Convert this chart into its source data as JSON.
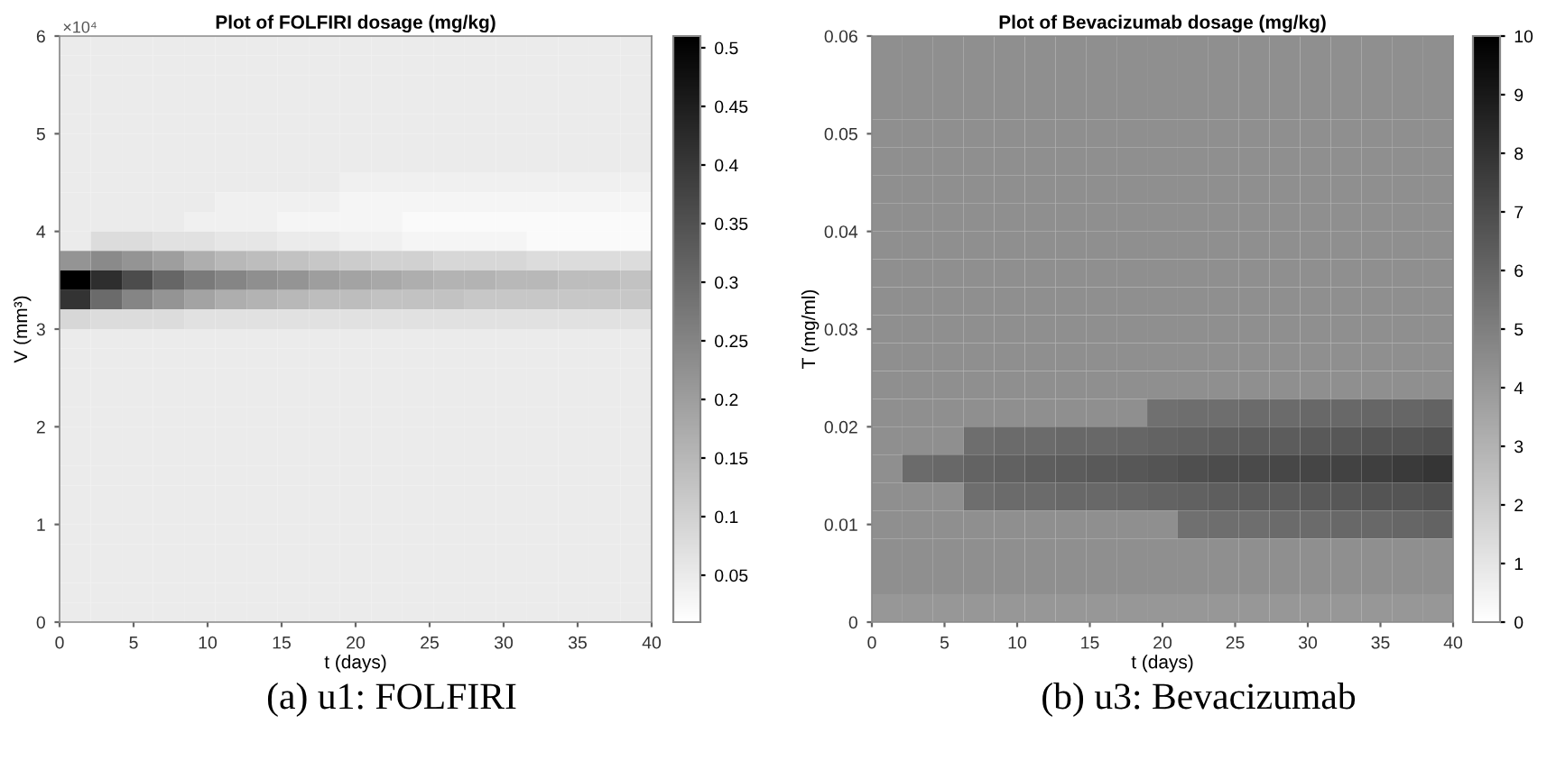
{
  "chart_data": [
    {
      "type": "heatmap",
      "title": "Plot of FOLFIRI dosage (mg/kg)",
      "xlabel": "t (days)",
      "ylabel": "V (mm³)",
      "xlim": [
        0,
        40
      ],
      "ylim": [
        0,
        6
      ],
      "xticks": [
        0,
        5,
        10,
        15,
        20,
        25,
        30,
        35,
        40
      ],
      "yticks": [
        0,
        1,
        2,
        3,
        4,
        5,
        6
      ],
      "clim": [
        0.01,
        0.51
      ],
      "cticks": [
        0.05,
        0.1,
        0.15,
        0.2,
        0.25,
        0.3,
        0.35,
        0.4,
        0.45,
        0.5
      ],
      "annotations": [
        "×10⁴",
        "(a) u1: FOLFIRI"
      ],
      "cells": [
        [
          0.05,
          0.05,
          0.05,
          0.05,
          0.05,
          0.05,
          0.05,
          0.05,
          0.05,
          0.05,
          0.05,
          0.05,
          0.05,
          0.05,
          0.05,
          0.05,
          0.05,
          0.05,
          0.05
        ],
        [
          0.05,
          0.05,
          0.05,
          0.05,
          0.05,
          0.05,
          0.05,
          0.05,
          0.05,
          0.05,
          0.05,
          0.05,
          0.05,
          0.05,
          0.05,
          0.05,
          0.05,
          0.05,
          0.05
        ],
        [
          0.05,
          0.05,
          0.05,
          0.05,
          0.05,
          0.05,
          0.05,
          0.05,
          0.05,
          0.05,
          0.05,
          0.05,
          0.05,
          0.05,
          0.05,
          0.05,
          0.05,
          0.05,
          0.05
        ],
        [
          0.05,
          0.05,
          0.05,
          0.05,
          0.05,
          0.05,
          0.05,
          0.05,
          0.05,
          0.05,
          0.05,
          0.05,
          0.05,
          0.05,
          0.05,
          0.05,
          0.05,
          0.05,
          0.05
        ],
        [
          0.05,
          0.05,
          0.05,
          0.05,
          0.05,
          0.05,
          0.05,
          0.05,
          0.05,
          0.05,
          0.05,
          0.05,
          0.05,
          0.05,
          0.05,
          0.05,
          0.05,
          0.05,
          0.05
        ],
        [
          0.05,
          0.05,
          0.05,
          0.05,
          0.05,
          0.05,
          0.05,
          0.05,
          0.05,
          0.05,
          0.05,
          0.05,
          0.05,
          0.05,
          0.05,
          0.05,
          0.05,
          0.05,
          0.05
        ],
        [
          0.05,
          0.05,
          0.05,
          0.05,
          0.05,
          0.05,
          0.05,
          0.05,
          0.05,
          0.05,
          0.05,
          0.05,
          0.05,
          0.05,
          0.05,
          0.05,
          0.05,
          0.05,
          0.05
        ],
        [
          0.05,
          0.05,
          0.05,
          0.05,
          0.05,
          0.05,
          0.05,
          0.05,
          0.05,
          0.04,
          0.04,
          0.04,
          0.04,
          0.04,
          0.04,
          0.04,
          0.04,
          0.04,
          0.04
        ],
        [
          0.05,
          0.05,
          0.05,
          0.05,
          0.05,
          0.04,
          0.04,
          0.04,
          0.04,
          0.03,
          0.03,
          0.03,
          0.03,
          0.03,
          0.03,
          0.03,
          0.03,
          0.03,
          0.03
        ],
        [
          0.05,
          0.05,
          0.05,
          0.05,
          0.04,
          0.04,
          0.04,
          0.03,
          0.03,
          0.03,
          0.03,
          0.02,
          0.02,
          0.02,
          0.02,
          0.02,
          0.02,
          0.02,
          0.02
        ],
        [
          0.05,
          0.08,
          0.08,
          0.07,
          0.07,
          0.06,
          0.06,
          0.05,
          0.05,
          0.04,
          0.04,
          0.03,
          0.03,
          0.03,
          0.03,
          0.02,
          0.02,
          0.02,
          0.02
        ],
        [
          0.22,
          0.24,
          0.22,
          0.2,
          0.17,
          0.15,
          0.14,
          0.13,
          0.12,
          0.11,
          0.1,
          0.1,
          0.09,
          0.09,
          0.09,
          0.08,
          0.08,
          0.08,
          0.08
        ],
        [
          0.51,
          0.42,
          0.36,
          0.31,
          0.27,
          0.25,
          0.23,
          0.22,
          0.2,
          0.19,
          0.18,
          0.17,
          0.16,
          0.16,
          0.15,
          0.15,
          0.14,
          0.14,
          0.13
        ],
        [
          0.41,
          0.3,
          0.25,
          0.22,
          0.19,
          0.17,
          0.16,
          0.15,
          0.14,
          0.14,
          0.13,
          0.13,
          0.13,
          0.12,
          0.12,
          0.12,
          0.12,
          0.12,
          0.12
        ],
        [
          0.09,
          0.08,
          0.08,
          0.08,
          0.07,
          0.07,
          0.07,
          0.07,
          0.07,
          0.07,
          0.07,
          0.07,
          0.07,
          0.07,
          0.07,
          0.07,
          0.07,
          0.07,
          0.07
        ],
        [
          0.05,
          0.05,
          0.05,
          0.05,
          0.05,
          0.05,
          0.05,
          0.05,
          0.05,
          0.05,
          0.05,
          0.05,
          0.05,
          0.05,
          0.05,
          0.05,
          0.05,
          0.05,
          0.05
        ],
        [
          0.05,
          0.05,
          0.05,
          0.05,
          0.05,
          0.05,
          0.05,
          0.05,
          0.05,
          0.05,
          0.05,
          0.05,
          0.05,
          0.05,
          0.05,
          0.05,
          0.05,
          0.05,
          0.05
        ],
        [
          0.05,
          0.05,
          0.05,
          0.05,
          0.05,
          0.05,
          0.05,
          0.05,
          0.05,
          0.05,
          0.05,
          0.05,
          0.05,
          0.05,
          0.05,
          0.05,
          0.05,
          0.05,
          0.05
        ],
        [
          0.05,
          0.05,
          0.05,
          0.05,
          0.05,
          0.05,
          0.05,
          0.05,
          0.05,
          0.05,
          0.05,
          0.05,
          0.05,
          0.05,
          0.05,
          0.05,
          0.05,
          0.05,
          0.05
        ],
        [
          0.05,
          0.05,
          0.05,
          0.05,
          0.05,
          0.05,
          0.05,
          0.05,
          0.05,
          0.05,
          0.05,
          0.05,
          0.05,
          0.05,
          0.05,
          0.05,
          0.05,
          0.05,
          0.05
        ],
        [
          0.05,
          0.05,
          0.05,
          0.05,
          0.05,
          0.05,
          0.05,
          0.05,
          0.05,
          0.05,
          0.05,
          0.05,
          0.05,
          0.05,
          0.05,
          0.05,
          0.05,
          0.05,
          0.05
        ],
        [
          0.05,
          0.05,
          0.05,
          0.05,
          0.05,
          0.05,
          0.05,
          0.05,
          0.05,
          0.05,
          0.05,
          0.05,
          0.05,
          0.05,
          0.05,
          0.05,
          0.05,
          0.05,
          0.05
        ],
        [
          0.05,
          0.05,
          0.05,
          0.05,
          0.05,
          0.05,
          0.05,
          0.05,
          0.05,
          0.05,
          0.05,
          0.05,
          0.05,
          0.05,
          0.05,
          0.05,
          0.05,
          0.05,
          0.05
        ],
        [
          0.05,
          0.05,
          0.05,
          0.05,
          0.05,
          0.05,
          0.05,
          0.05,
          0.05,
          0.05,
          0.05,
          0.05,
          0.05,
          0.05,
          0.05,
          0.05,
          0.05,
          0.05,
          0.05
        ],
        [
          0.05,
          0.05,
          0.05,
          0.05,
          0.05,
          0.05,
          0.05,
          0.05,
          0.05,
          0.05,
          0.05,
          0.05,
          0.05,
          0.05,
          0.05,
          0.05,
          0.05,
          0.05,
          0.05
        ],
        [
          0.05,
          0.05,
          0.05,
          0.05,
          0.05,
          0.05,
          0.05,
          0.05,
          0.05,
          0.05,
          0.05,
          0.05,
          0.05,
          0.05,
          0.05,
          0.05,
          0.05,
          0.05,
          0.05
        ],
        [
          0.05,
          0.05,
          0.05,
          0.05,
          0.05,
          0.05,
          0.05,
          0.05,
          0.05,
          0.05,
          0.05,
          0.05,
          0.05,
          0.05,
          0.05,
          0.05,
          0.05,
          0.05,
          0.05
        ],
        [
          0.05,
          0.05,
          0.05,
          0.05,
          0.05,
          0.05,
          0.05,
          0.05,
          0.05,
          0.05,
          0.05,
          0.05,
          0.05,
          0.05,
          0.05,
          0.05,
          0.05,
          0.05,
          0.05
        ],
        [
          0.05,
          0.05,
          0.05,
          0.05,
          0.05,
          0.05,
          0.05,
          0.05,
          0.05,
          0.05,
          0.05,
          0.05,
          0.05,
          0.05,
          0.05,
          0.05,
          0.05,
          0.05,
          0.05
        ],
        [
          0.05,
          0.05,
          0.05,
          0.05,
          0.05,
          0.05,
          0.05,
          0.05,
          0.05,
          0.05,
          0.05,
          0.05,
          0.05,
          0.05,
          0.05,
          0.05,
          0.05,
          0.05,
          0.05
        ]
      ]
    },
    {
      "type": "heatmap",
      "title": "Plot of Bevacizumab dosage (mg/kg)",
      "xlabel": "t (days)",
      "ylabel": "T (mg/ml)",
      "xlim": [
        0,
        40
      ],
      "ylim": [
        0,
        0.06
      ],
      "xticks": [
        0,
        5,
        10,
        15,
        20,
        25,
        30,
        35,
        40
      ],
      "yticks": [
        0,
        0.01,
        0.02,
        0.03,
        0.04,
        0.05,
        0.06
      ],
      "clim": [
        0,
        10
      ],
      "cticks": [
        0,
        1,
        2,
        3,
        4,
        5,
        6,
        7,
        8,
        9,
        10
      ],
      "annotations": [
        "(b) u3: Bevacizumab"
      ],
      "cells": [
        [
          4.4,
          4.4,
          4.4,
          4.4,
          4.4,
          4.4,
          4.4,
          4.4,
          4.4,
          4.4,
          4.4,
          4.4,
          4.4,
          4.4,
          4.4,
          4.4,
          4.4,
          4.4,
          4.4
        ],
        [
          4.4,
          4.4,
          4.4,
          4.4,
          4.4,
          4.4,
          4.4,
          4.4,
          4.4,
          4.4,
          4.4,
          4.4,
          4.4,
          4.4,
          4.4,
          4.4,
          4.4,
          4.4,
          4.4
        ],
        [
          4.4,
          4.4,
          4.4,
          4.4,
          4.4,
          4.4,
          4.4,
          4.4,
          4.4,
          4.4,
          4.4,
          4.4,
          4.4,
          4.4,
          4.4,
          4.4,
          4.4,
          4.4,
          4.4
        ],
        [
          4.4,
          4.4,
          4.4,
          4.4,
          4.4,
          4.4,
          4.4,
          4.4,
          4.4,
          4.4,
          4.4,
          4.4,
          4.4,
          4.4,
          4.4,
          4.4,
          4.4,
          4.4,
          4.4
        ],
        [
          4.4,
          4.4,
          4.4,
          4.4,
          4.4,
          4.4,
          4.4,
          4.4,
          4.4,
          4.4,
          4.4,
          4.4,
          4.4,
          4.4,
          4.4,
          4.4,
          4.4,
          4.4,
          4.4
        ],
        [
          4.4,
          4.4,
          4.4,
          4.4,
          4.4,
          4.4,
          4.4,
          4.4,
          4.4,
          4.4,
          4.4,
          4.4,
          4.4,
          4.4,
          4.4,
          4.4,
          4.4,
          4.4,
          4.4
        ],
        [
          4.4,
          4.4,
          4.4,
          4.4,
          4.4,
          4.4,
          4.4,
          4.4,
          4.4,
          4.4,
          4.4,
          4.4,
          4.4,
          4.4,
          4.4,
          4.4,
          4.4,
          4.4,
          4.4
        ],
        [
          4.4,
          4.4,
          4.4,
          4.4,
          4.4,
          4.4,
          4.4,
          4.4,
          4.4,
          4.4,
          4.4,
          4.4,
          4.4,
          4.4,
          4.4,
          4.4,
          4.4,
          4.4,
          4.4
        ],
        [
          4.4,
          4.4,
          4.4,
          4.4,
          4.4,
          4.4,
          4.4,
          4.4,
          4.4,
          4.4,
          4.4,
          4.4,
          4.4,
          4.4,
          4.4,
          4.4,
          4.4,
          4.4,
          4.4
        ],
        [
          4.4,
          4.4,
          4.4,
          4.4,
          4.4,
          4.4,
          4.4,
          4.4,
          4.4,
          4.4,
          4.4,
          4.4,
          4.4,
          4.4,
          4.4,
          4.4,
          4.4,
          4.4,
          4.4
        ],
        [
          4.4,
          4.4,
          4.4,
          4.4,
          4.4,
          4.4,
          4.4,
          4.4,
          4.4,
          4.4,
          4.4,
          4.4,
          4.4,
          4.4,
          4.4,
          4.4,
          4.4,
          4.4,
          4.4
        ],
        [
          4.4,
          4.4,
          4.4,
          4.4,
          4.4,
          4.4,
          4.4,
          4.4,
          4.4,
          4.4,
          4.4,
          4.4,
          4.4,
          4.4,
          4.4,
          4.4,
          4.4,
          4.4,
          4.4
        ],
        [
          4.4,
          4.4,
          4.4,
          4.4,
          4.4,
          4.4,
          4.4,
          4.4,
          4.4,
          4.4,
          4.4,
          4.4,
          4.4,
          4.4,
          4.4,
          4.4,
          4.4,
          4.4,
          4.4
        ],
        [
          4.4,
          4.4,
          4.4,
          4.4,
          4.4,
          4.4,
          4.4,
          4.4,
          4.4,
          5.6,
          5.7,
          5.7,
          5.8,
          5.8,
          5.9,
          5.9,
          6.0,
          6.0,
          6.1
        ],
        [
          4.4,
          4.4,
          4.4,
          5.7,
          5.8,
          5.8,
          5.9,
          5.9,
          6.0,
          6.1,
          6.2,
          6.3,
          6.4,
          6.4,
          6.5,
          6.6,
          6.7,
          6.7,
          6.8
        ],
        [
          4.4,
          5.8,
          5.9,
          6.1,
          6.2,
          6.3,
          6.4,
          6.5,
          6.6,
          6.7,
          6.9,
          7.0,
          7.1,
          7.2,
          7.3,
          7.4,
          7.5,
          7.7,
          7.9
        ],
        [
          4.4,
          4.4,
          4.4,
          5.7,
          5.8,
          5.8,
          5.9,
          5.9,
          6.0,
          6.1,
          6.2,
          6.3,
          6.4,
          6.4,
          6.5,
          6.6,
          6.7,
          6.7,
          6.8
        ],
        [
          4.4,
          4.4,
          4.4,
          4.4,
          4.4,
          4.4,
          4.4,
          4.4,
          4.4,
          4.4,
          5.6,
          5.7,
          5.7,
          5.8,
          5.8,
          5.9,
          5.9,
          6.0,
          6.1
        ],
        [
          4.4,
          4.4,
          4.4,
          4.4,
          4.4,
          4.4,
          4.4,
          4.4,
          4.4,
          4.4,
          4.4,
          4.4,
          4.4,
          4.4,
          4.4,
          4.4,
          4.4,
          4.4,
          4.4
        ],
        [
          4.4,
          4.4,
          4.4,
          4.4,
          4.4,
          4.4,
          4.4,
          4.4,
          4.4,
          4.4,
          4.4,
          4.4,
          4.4,
          4.4,
          4.4,
          4.4,
          4.4,
          4.4,
          4.4
        ],
        [
          4.1,
          4.1,
          4.1,
          4.1,
          4.1,
          4.1,
          4.1,
          4.1,
          4.1,
          4.1,
          4.1,
          4.1,
          4.1,
          4.1,
          4.1,
          4.1,
          4.1,
          4.1,
          4.1
        ]
      ]
    }
  ]
}
